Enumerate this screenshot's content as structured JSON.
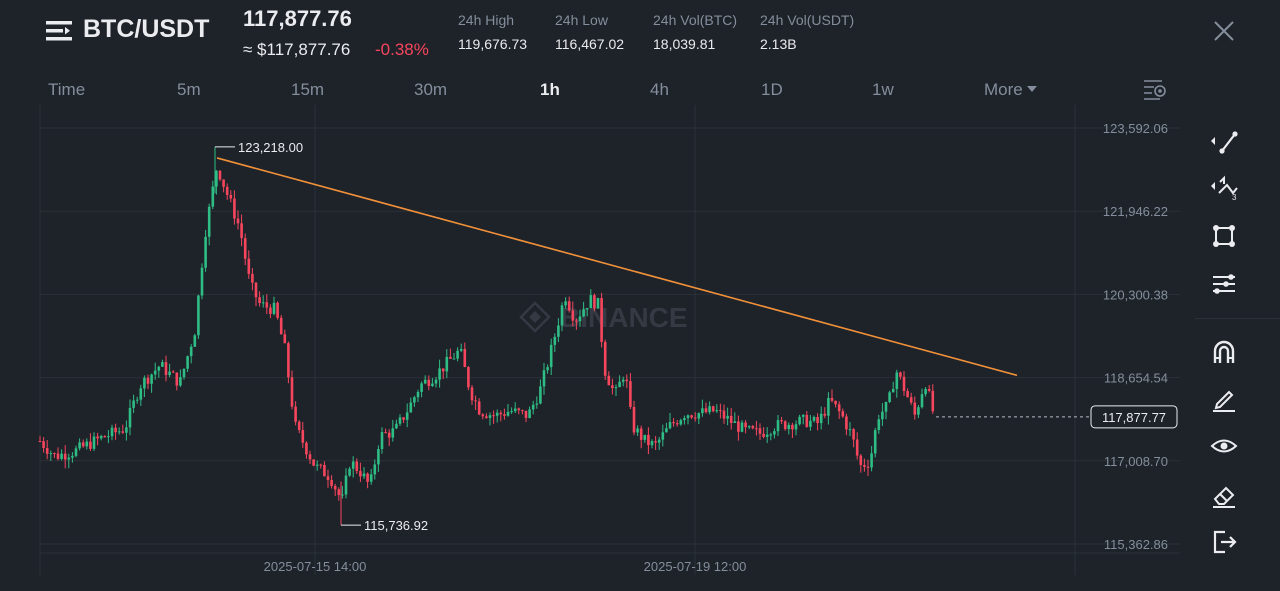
{
  "header": {
    "pair": "BTC/USDT",
    "last_price": "117,877.76",
    "usd_price": "≈ $117,877.76",
    "change": "-0.38%",
    "stats": [
      {
        "label": "24h High",
        "value": "119,676.73"
      },
      {
        "label": "24h Low",
        "value": "116,467.02"
      },
      {
        "label": "24h Vol(BTC)",
        "value": "18,039.81"
      },
      {
        "label": "24h Vol(USDT)",
        "value": "2.13B"
      }
    ]
  },
  "intervals": {
    "items": [
      "Time",
      "5m",
      "15m",
      "30m",
      "1h",
      "4h",
      "1D",
      "1w"
    ],
    "active": "1h",
    "more": "More"
  },
  "chart_data": {
    "type": "candlestick",
    "y_ticks": [
      "123,592.06",
      "121,946.22",
      "120,300.38",
      "118,654.54",
      "117,008.70",
      "115,362.86"
    ],
    "y_tick_values": [
      123592.06,
      121946.22,
      120300.38,
      118654.54,
      117008.7,
      115362.86
    ],
    "x_ticks": [
      "2025-07-15 14:00",
      "2025-07-19 12:00"
    ],
    "high_label": "123,218.00",
    "high_value": 123218.0,
    "low_label": "115,736.92",
    "low_value": 115736.92,
    "last_price_label": "117,877.77",
    "last_price_value": 117877.77,
    "watermark": "BINANCE",
    "trendline": {
      "from_value": 123000,
      "to_value": 118700
    },
    "up_color": "#2ebd85",
    "down_color": "#f6465d",
    "trendline_color": "#f0913a",
    "grid": true
  },
  "toolbar": {
    "tools": [
      "trend-line-tool-icon",
      "fibonacci-tool-icon",
      "shape-tool-icon",
      "indicator-tool-icon",
      "magnet-icon",
      "pencil-icon",
      "eye-icon",
      "eraser-icon",
      "exit-icon"
    ]
  }
}
